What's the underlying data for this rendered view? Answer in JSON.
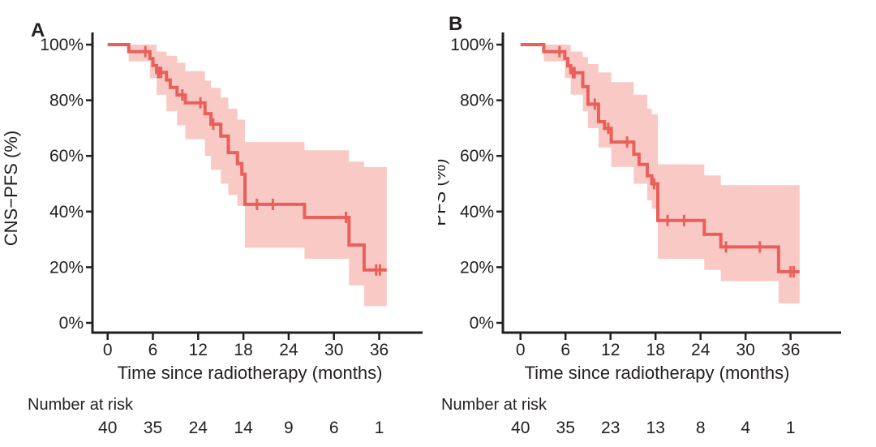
{
  "figure": {
    "background": "#ffffff",
    "text_color": "#231f20",
    "line_color": "#e9605a",
    "band_color": "#f9c9c6"
  },
  "chart_data": [
    {
      "type": "line",
      "subtype": "kaplan-meier-step",
      "title": "A",
      "ylabel": "CNS−PFS (%)",
      "xlabel": "Time since radiotherapy (months)",
      "xlim": [
        0,
        41
      ],
      "ylim": [
        0,
        100
      ],
      "grid": "off",
      "legend": "none",
      "xticks": [
        0,
        6,
        12,
        18,
        24,
        30,
        36
      ],
      "xtick_labels": [
        "0",
        "6",
        "12",
        "18",
        "24",
        "30",
        "36"
      ],
      "yticks": [
        100,
        80,
        60,
        40,
        20,
        0
      ],
      "ytick_labels": [
        "100%",
        "80%",
        "60%",
        "40%",
        "20%",
        "0%"
      ],
      "line_color": "#e9605a",
      "band_color": "#f9c9c6",
      "steps": [
        [
          0,
          100
        ],
        [
          2.8,
          97.5
        ],
        [
          5.6,
          95
        ],
        [
          6,
          92.5
        ],
        [
          6.5,
          90
        ],
        [
          7.8,
          87.3
        ],
        [
          8.3,
          84.6
        ],
        [
          9.2,
          81.9
        ],
        [
          10.3,
          79.1
        ],
        [
          12.9,
          75.2
        ],
        [
          13.7,
          71.4
        ],
        [
          15,
          67.1
        ],
        [
          16,
          61.2
        ],
        [
          17.2,
          57.2
        ],
        [
          17.8,
          53.4
        ],
        [
          18.2,
          42.6
        ],
        [
          26.1,
          37.9
        ],
        [
          32,
          28
        ],
        [
          34,
          19
        ]
      ],
      "end_time": 37.0,
      "censors": [
        [
          5,
          97.5
        ],
        [
          6.7,
          90
        ],
        [
          6.9,
          90
        ],
        [
          7.1,
          90
        ],
        [
          9.9,
          81.9
        ],
        [
          12.3,
          79.1
        ],
        [
          14,
          71.4
        ],
        [
          19.8,
          42.6
        ],
        [
          21.9,
          42.6
        ],
        [
          31.6,
          37.9
        ],
        [
          35.6,
          19
        ],
        [
          36.1,
          19
        ]
      ],
      "ci": [
        [
          2.8,
          94,
          100
        ],
        [
          5.6,
          88,
          100
        ],
        [
          6.5,
          82,
          97.5
        ],
        [
          7.8,
          76,
          96
        ],
        [
          9.2,
          71,
          93.5
        ],
        [
          10.3,
          66,
          90.5
        ],
        [
          12.9,
          60,
          87
        ],
        [
          13.7,
          55,
          84.5
        ],
        [
          15,
          50,
          81
        ],
        [
          16,
          46,
          77
        ],
        [
          17.2,
          42,
          73
        ],
        [
          18.2,
          27,
          65
        ],
        [
          26.1,
          23,
          62
        ],
        [
          32,
          13.5,
          58
        ],
        [
          34,
          6,
          56
        ]
      ],
      "risk": {
        "label": "Number at risk",
        "times": [
          0,
          6,
          12,
          18,
          24,
          30,
          36
        ],
        "counts": [
          "40",
          "35",
          "24",
          "14",
          "9",
          "6",
          "1"
        ]
      }
    },
    {
      "type": "line",
      "subtype": "kaplan-meier-step",
      "title": "B",
      "ylabel": "PFS (%)",
      "xlabel": "Time since radiotherapy (months)",
      "xlim": [
        0,
        41
      ],
      "ylim": [
        0,
        100
      ],
      "grid": "off",
      "legend": "none",
      "xticks": [
        0,
        6,
        12,
        18,
        24,
        30,
        36
      ],
      "xtick_labels": [
        "0",
        "6",
        "12",
        "18",
        "24",
        "30",
        "36"
      ],
      "yticks": [
        100,
        80,
        60,
        40,
        20,
        0
      ],
      "ytick_labels": [
        "100%",
        "80%",
        "60%",
        "40%",
        "20%",
        "0%"
      ],
      "line_color": "#e9605a",
      "band_color": "#f9c9c6",
      "steps": [
        [
          0,
          100
        ],
        [
          3.1,
          97.5
        ],
        [
          5.9,
          95
        ],
        [
          6.3,
          92.4
        ],
        [
          6.7,
          89.9
        ],
        [
          8.3,
          84.9
        ],
        [
          9,
          78.6
        ],
        [
          10.4,
          72.3
        ],
        [
          11.2,
          69.9
        ],
        [
          12.1,
          65
        ],
        [
          15.1,
          60.6
        ],
        [
          15.8,
          56.9
        ],
        [
          16.9,
          52.9
        ],
        [
          17.5,
          50
        ],
        [
          18.3,
          36.8
        ],
        [
          24.5,
          31.8
        ],
        [
          26.7,
          27.3
        ],
        [
          34.4,
          18.4
        ]
      ],
      "end_time": 37.2,
      "censors": [
        [
          5.2,
          97.5
        ],
        [
          7,
          89.9
        ],
        [
          7.2,
          89.9
        ],
        [
          9.9,
          78.6
        ],
        [
          11.7,
          69.9
        ],
        [
          14.2,
          65
        ],
        [
          17.8,
          50
        ],
        [
          19.6,
          36.8
        ],
        [
          21.8,
          36.8
        ],
        [
          27.4,
          27.3
        ],
        [
          31.9,
          27.3
        ],
        [
          36,
          18.4
        ],
        [
          36.4,
          18.4
        ]
      ],
      "ci": [
        [
          3.1,
          94,
          100
        ],
        [
          5.9,
          88,
          100
        ],
        [
          6.7,
          82,
          97.5
        ],
        [
          8.3,
          76,
          95.5
        ],
        [
          9,
          70,
          93
        ],
        [
          10.4,
          63,
          90
        ],
        [
          12.1,
          56,
          86.5
        ],
        [
          15.1,
          50,
          82
        ],
        [
          16.9,
          44,
          77
        ],
        [
          17.5,
          41,
          75
        ],
        [
          18.3,
          23,
          57
        ],
        [
          24.5,
          19,
          53
        ],
        [
          26.7,
          15,
          49.5
        ],
        [
          34.4,
          7,
          49.5
        ]
      ],
      "risk": {
        "label": "Number at risk",
        "times": [
          0,
          6,
          12,
          18,
          24,
          30,
          36
        ],
        "counts": [
          "40",
          "35",
          "23",
          "13",
          "8",
          "4",
          "1"
        ]
      }
    }
  ]
}
